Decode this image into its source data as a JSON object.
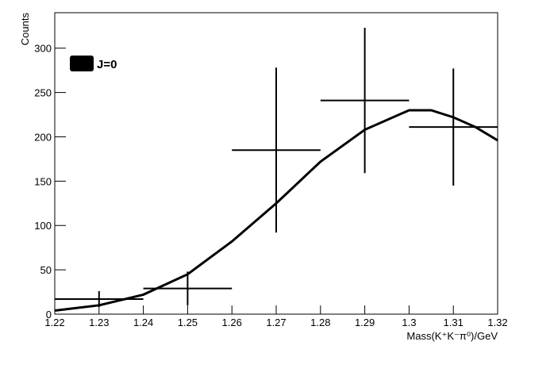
{
  "chart_data": {
    "type": "errorbar",
    "x_label": "Mass(K⁺K⁻π⁰)/GeV",
    "y_label": "Counts",
    "points": {
      "x": [
        1.23,
        1.25,
        1.27,
        1.29,
        1.31
      ],
      "values": [
        17,
        29,
        185,
        241,
        211
      ],
      "xerr": [
        0.01,
        0.01,
        0.01,
        0.01,
        0.01
      ],
      "yerr": [
        9,
        19,
        93,
        82,
        66
      ],
      "color": "#000000"
    },
    "series": [
      {
        "name": "J=0",
        "color": "#000000",
        "x": [
          1.22,
          1.23,
          1.24,
          1.25,
          1.26,
          1.27,
          1.28,
          1.29,
          1.3,
          1.305,
          1.31,
          1.315,
          1.32
        ],
        "values": [
          4,
          10,
          22,
          45,
          82,
          125,
          172,
          208,
          230,
          230,
          222,
          211,
          196
        ]
      }
    ],
    "xlim": [
      1.22,
      1.32
    ],
    "ylim": [
      0,
      340
    ],
    "xticks": [
      1.22,
      1.23,
      1.24,
      1.25,
      1.26,
      1.27,
      1.28,
      1.29,
      1.3,
      1.31,
      1.32
    ],
    "yticks": [
      0,
      50,
      100,
      150,
      200,
      250,
      300
    ]
  }
}
